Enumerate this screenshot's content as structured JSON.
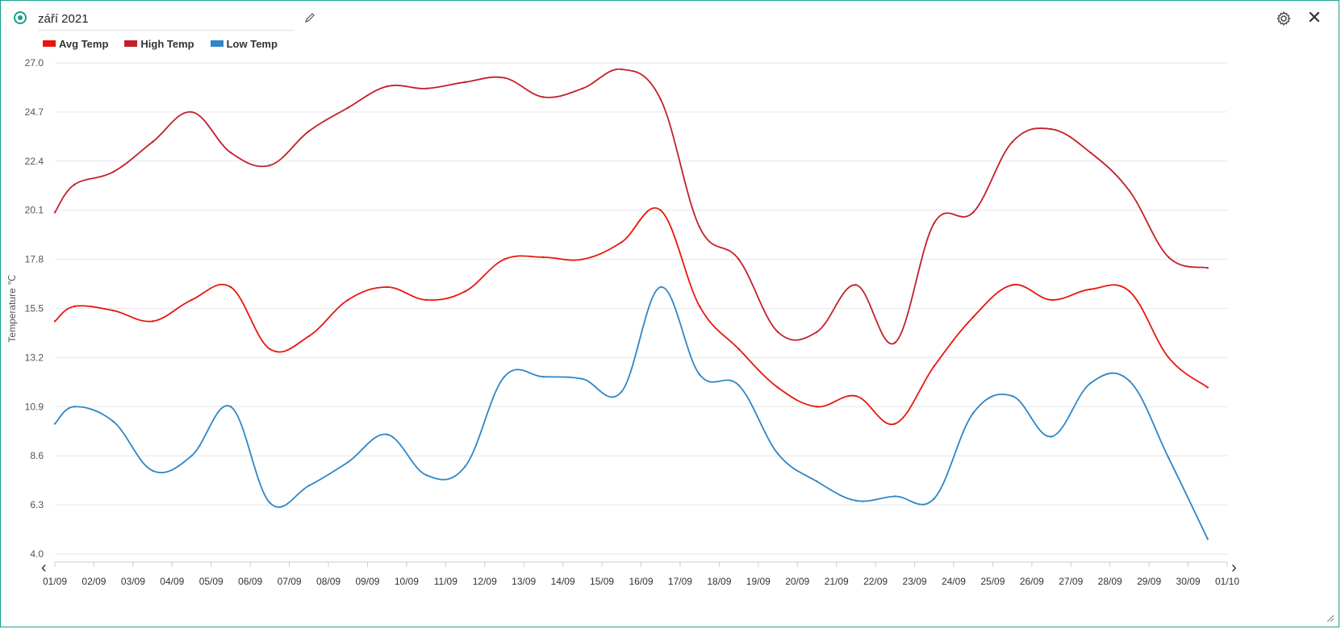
{
  "header": {
    "title": "září 2021"
  },
  "icons": {
    "status": "status-dot-icon",
    "edit": "pencil-icon",
    "settings": "gear-icon",
    "close": "close-icon",
    "prev": "chevron-left-icon",
    "next": "chevron-right-icon"
  },
  "controls": {
    "close_label": "✕",
    "prev_label": "‹",
    "next_label": "›"
  },
  "colors": {
    "accent": "#1a9e8a",
    "avg": "#e8160c",
    "high": "#c4202a",
    "low": "#2f86c6"
  },
  "chart_data": {
    "type": "line",
    "ylabel": "Temperature ℃",
    "xlabel": "",
    "ylim": [
      4.0,
      27.0
    ],
    "y_ticks": [
      "27.0",
      "24.7",
      "22.4",
      "20.1",
      "17.8",
      "15.5",
      "13.2",
      "10.9",
      "8.6",
      "6.3",
      "4.0"
    ],
    "x_ticks": [
      "01/09",
      "02/09",
      "03/09",
      "04/09",
      "05/09",
      "06/09",
      "07/09",
      "08/09",
      "09/09",
      "10/09",
      "11/09",
      "12/09",
      "13/09",
      "14/09",
      "15/09",
      "16/09",
      "17/09",
      "18/09",
      "19/09",
      "20/09",
      "21/09",
      "22/09",
      "23/09",
      "24/09",
      "25/09",
      "26/09",
      "27/09",
      "28/09",
      "29/09",
      "30/09",
      "01/10"
    ],
    "x": [
      "01/09",
      "01/09 12h",
      "02/09 12h",
      "03/09 12h",
      "04/09 12h",
      "05/09 12h",
      "06/09 12h",
      "07/09 12h",
      "08/09 12h",
      "09/09 12h",
      "10/09 12h",
      "11/09 12h",
      "12/09 12h",
      "13/09 12h",
      "14/09 12h",
      "15/09 12h",
      "16/09 12h",
      "17/09 12h",
      "18/09 12h",
      "19/09 12h",
      "20/09 12h",
      "21/09 12h",
      "22/09 12h",
      "23/09 12h",
      "24/09 12h",
      "25/09 12h",
      "26/09 12h",
      "27/09 12h",
      "28/09 12h",
      "29/09 12h",
      "30/09 12h"
    ],
    "grid": true,
    "legend_position": "top-left",
    "series": [
      {
        "name": "Avg Temp",
        "values": [
          14.9,
          15.6,
          15.4,
          14.9,
          15.9,
          16.5,
          13.6,
          14.2,
          15.9,
          16.5,
          15.9,
          16.3,
          17.8,
          17.9,
          17.8,
          18.6,
          20.1,
          15.6,
          13.6,
          11.8,
          10.9,
          11.4,
          10.1,
          12.8,
          15.1,
          16.6,
          15.9,
          16.4,
          16.3,
          13.2,
          11.8
        ]
      },
      {
        "name": "High Temp",
        "values": [
          20.0,
          21.3,
          21.9,
          23.3,
          24.7,
          22.8,
          22.2,
          23.8,
          24.9,
          25.9,
          25.8,
          26.1,
          26.3,
          25.4,
          25.8,
          26.7,
          25.3,
          19.3,
          17.8,
          14.4,
          14.4,
          16.6,
          13.9,
          19.5,
          20.0,
          23.3,
          23.9,
          22.8,
          21.0,
          17.9,
          17.4
        ]
      },
      {
        "name": "Low Temp",
        "values": [
          10.1,
          10.9,
          10.2,
          7.9,
          8.6,
          10.9,
          6.4,
          7.2,
          8.3,
          9.6,
          7.7,
          8.1,
          12.3,
          12.3,
          12.2,
          11.6,
          16.5,
          12.4,
          11.9,
          8.7,
          7.4,
          6.5,
          6.7,
          6.6,
          10.6,
          11.4,
          9.5,
          12.0,
          12.1,
          8.5,
          4.7
        ]
      }
    ]
  }
}
